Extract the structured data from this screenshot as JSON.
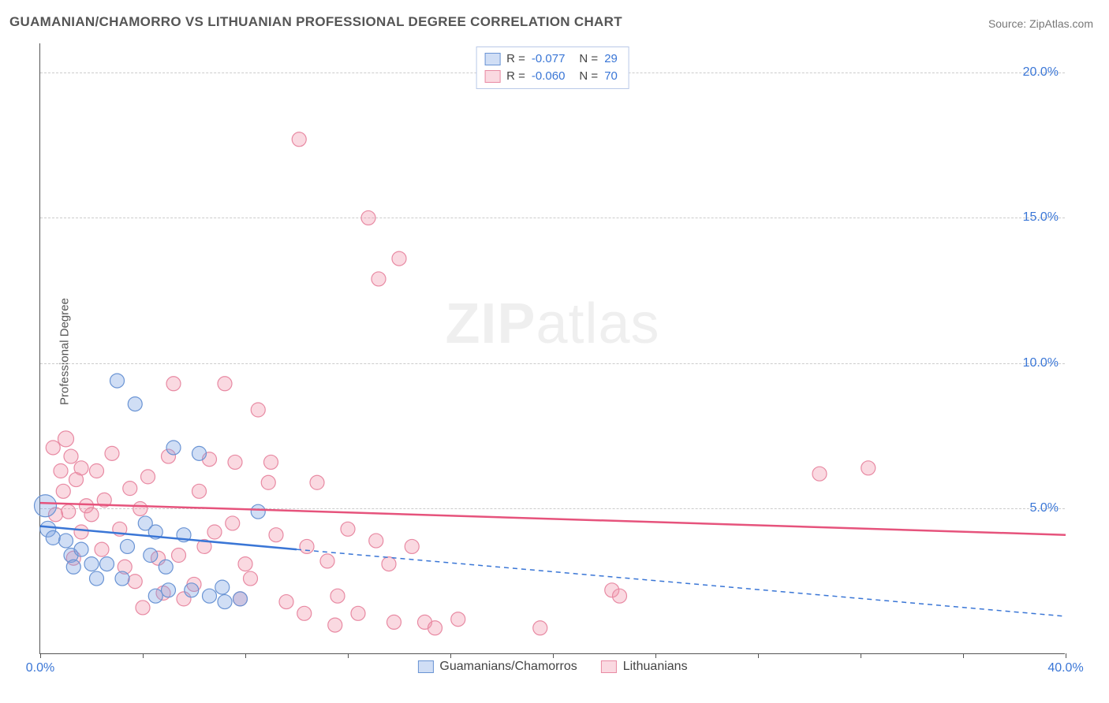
{
  "title": "GUAMANIAN/CHAMORRO VS LITHUANIAN PROFESSIONAL DEGREE CORRELATION CHART",
  "source": "Source: ZipAtlas.com",
  "ylabel": "Professional Degree",
  "watermark_zip": "ZIP",
  "watermark_atlas": "atlas",
  "chart": {
    "type": "scatter",
    "xlim": [
      0,
      40
    ],
    "ylim": [
      0,
      21
    ],
    "xticks": [
      0,
      4,
      8,
      12,
      16,
      20,
      24,
      28,
      32,
      36,
      40
    ],
    "xtick_labels": {
      "0": "0.0%",
      "40": "40.0%"
    },
    "yticks": [
      5,
      10,
      15,
      20
    ],
    "ytick_labels": {
      "5": "5.0%",
      "10": "10.0%",
      "15": "15.0%",
      "20": "20.0%"
    },
    "gridlines_y": [
      5,
      10,
      15,
      20
    ],
    "background_color": "#ffffff",
    "grid_color": "#cccccc",
    "axis_color": "#555555",
    "tick_label_color": "#3a76d6",
    "marker_radius": 9,
    "marker_stroke_width": 1.2,
    "trend_line_width": 2.5,
    "dash_pattern": "6,5",
    "series": [
      {
        "name": "Guamanians/Chamorros",
        "fill": "rgba(120,160,225,0.35)",
        "stroke": "#6a94d4",
        "line_stroke": "#3a76d6",
        "R": "-0.077",
        "N": "29",
        "trend": {
          "x1": 0,
          "y1": 4.4,
          "x2": 10,
          "y2": 3.6,
          "dash_x2": 40,
          "dash_y2": 1.3
        },
        "points": [
          [
            0.2,
            5.1,
            14
          ],
          [
            0.3,
            4.3,
            10
          ],
          [
            0.5,
            4.0,
            9
          ],
          [
            1.0,
            3.9,
            9
          ],
          [
            1.2,
            3.4,
            9
          ],
          [
            1.6,
            3.6,
            9
          ],
          [
            1.3,
            3.0,
            9
          ],
          [
            2.0,
            3.1,
            9
          ],
          [
            2.2,
            2.6,
            9
          ],
          [
            2.6,
            3.1,
            9
          ],
          [
            3.0,
            9.4,
            9
          ],
          [
            3.7,
            8.6,
            9
          ],
          [
            3.4,
            3.7,
            9
          ],
          [
            3.2,
            2.6,
            9
          ],
          [
            4.1,
            4.5,
            9
          ],
          [
            4.5,
            4.2,
            9
          ],
          [
            4.3,
            3.4,
            9
          ],
          [
            4.9,
            3.0,
            9
          ],
          [
            5.2,
            7.1,
            9
          ],
          [
            5.0,
            2.2,
            9
          ],
          [
            5.6,
            4.1,
            9
          ],
          [
            5.9,
            2.2,
            9
          ],
          [
            6.2,
            6.9,
            9
          ],
          [
            6.6,
            2.0,
            9
          ],
          [
            7.1,
            2.3,
            9
          ],
          [
            7.8,
            1.9,
            9
          ],
          [
            8.5,
            4.9,
            9
          ],
          [
            4.5,
            2.0,
            9
          ],
          [
            7.2,
            1.8,
            9
          ]
        ]
      },
      {
        "name": "Lithuanians",
        "fill": "rgba(240,145,170,0.35)",
        "stroke": "#e88aa3",
        "line_stroke": "#e6537c",
        "R": "-0.060",
        "N": "70",
        "trend": {
          "x1": 0,
          "y1": 5.2,
          "x2": 40,
          "y2": 4.1
        },
        "points": [
          [
            0.5,
            7.1,
            9
          ],
          [
            0.8,
            6.3,
            9
          ],
          [
            1.0,
            7.4,
            10
          ],
          [
            1.2,
            6.8,
            9
          ],
          [
            1.4,
            6.0,
            9
          ],
          [
            1.6,
            6.4,
            9
          ],
          [
            1.8,
            5.1,
            9
          ],
          [
            2.2,
            6.3,
            9
          ],
          [
            1.1,
            4.9,
            9
          ],
          [
            1.6,
            4.2,
            9
          ],
          [
            2.0,
            4.8,
            9
          ],
          [
            2.5,
            5.3,
            9
          ],
          [
            2.8,
            6.9,
            9
          ],
          [
            3.1,
            4.3,
            9
          ],
          [
            3.5,
            5.7,
            9
          ],
          [
            3.9,
            5.0,
            9
          ],
          [
            3.3,
            3.0,
            9
          ],
          [
            4.2,
            6.1,
            9
          ],
          [
            4.6,
            3.3,
            9
          ],
          [
            5.0,
            6.8,
            9
          ],
          [
            5.4,
            3.4,
            9
          ],
          [
            5.6,
            1.9,
            9
          ],
          [
            5.2,
            9.3,
            9
          ],
          [
            6.2,
            5.6,
            9
          ],
          [
            6.6,
            6.7,
            9
          ],
          [
            6.8,
            4.2,
            9
          ],
          [
            6.0,
            2.4,
            9
          ],
          [
            7.2,
            9.3,
            9
          ],
          [
            7.6,
            6.6,
            9
          ],
          [
            7.8,
            1.9,
            9
          ],
          [
            8.2,
            2.6,
            9
          ],
          [
            8.5,
            8.4,
            9
          ],
          [
            8.9,
            5.9,
            9
          ],
          [
            9.2,
            4.1,
            9
          ],
          [
            9.6,
            1.8,
            9
          ],
          [
            9.0,
            6.6,
            9
          ],
          [
            10.1,
            17.7,
            9
          ],
          [
            10.4,
            3.7,
            9
          ],
          [
            10.8,
            5.9,
            9
          ],
          [
            10.3,
            1.4,
            9
          ],
          [
            11.2,
            3.2,
            9
          ],
          [
            11.6,
            2.0,
            9
          ],
          [
            11.5,
            1.0,
            9
          ],
          [
            12.0,
            4.3,
            9
          ],
          [
            12.4,
            1.4,
            9
          ],
          [
            12.8,
            15.0,
            9
          ],
          [
            13.1,
            3.9,
            9
          ],
          [
            13.6,
            3.1,
            9
          ],
          [
            13.2,
            12.9,
            9
          ],
          [
            14.0,
            13.6,
            9
          ],
          [
            13.8,
            1.1,
            9
          ],
          [
            14.5,
            3.7,
            9
          ],
          [
            15.0,
            1.1,
            9
          ],
          [
            15.4,
            0.9,
            9
          ],
          [
            16.3,
            1.2,
            9
          ],
          [
            19.5,
            0.9,
            9
          ],
          [
            22.3,
            2.2,
            9
          ],
          [
            22.6,
            2.0,
            9
          ],
          [
            30.4,
            6.2,
            9
          ],
          [
            32.3,
            6.4,
            9
          ],
          [
            4.0,
            1.6,
            9
          ],
          [
            4.8,
            2.1,
            9
          ],
          [
            6.4,
            3.7,
            9
          ],
          [
            7.5,
            4.5,
            9
          ],
          [
            8.0,
            3.1,
            9
          ],
          [
            3.7,
            2.5,
            9
          ],
          [
            2.4,
            3.6,
            9
          ],
          [
            1.3,
            3.3,
            9
          ],
          [
            0.9,
            5.6,
            9
          ],
          [
            0.6,
            4.8,
            9
          ]
        ]
      }
    ]
  },
  "legend_stats_prefix_R": "R  = ",
  "legend_stats_prefix_N": "N  = "
}
